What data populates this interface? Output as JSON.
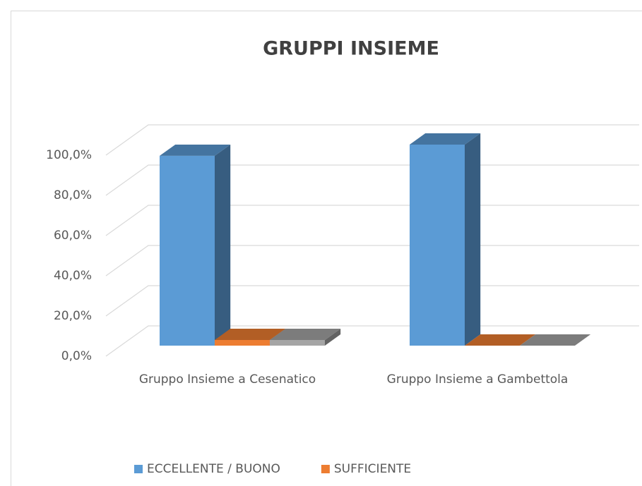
{
  "chart_data": {
    "type": "bar3d",
    "title": "GRUPPI INSIEME",
    "categories": [
      "Gruppo Insieme a Cesenatico",
      "Gruppo Insieme a Gambettola"
    ],
    "series": [
      {
        "name": "ECCELLENTE / BUONO",
        "color": "#5b9bd5",
        "values": [
          94.4,
          100
        ]
      },
      {
        "name": "SUFFICIENTE",
        "color": "#ed7d31",
        "values": [
          2.8,
          0
        ]
      },
      {
        "color": "#a5a5a5",
        "values": [
          2.8,
          0
        ]
      }
    ],
    "ylim": [
      0,
      100
    ],
    "yticks": [
      {
        "value": 0,
        "label": "0,0%"
      },
      {
        "value": 20,
        "label": "20,0%"
      },
      {
        "value": 40,
        "label": "40,0%"
      },
      {
        "value": 60,
        "label": "60,0%"
      },
      {
        "value": 80,
        "label": "80,0%"
      },
      {
        "value": 100,
        "label": "100,0%"
      }
    ],
    "grid": true,
    "legend": "bottom"
  }
}
